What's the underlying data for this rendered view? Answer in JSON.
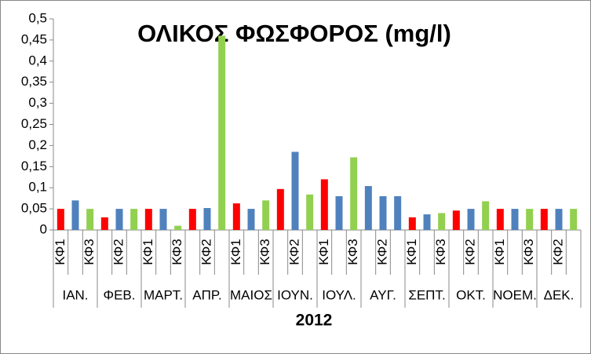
{
  "chart_data": {
    "type": "bar",
    "title": "ΟΛΙΚΟΣ ΦΩΣΦΟΡΟΣ (mg/l)",
    "x_label": "2012",
    "categories": [
      "ΚΦ1",
      null,
      "ΚΦ3",
      null,
      "ΚΦ2",
      null,
      "ΚΦ1",
      null,
      "ΚΦ3",
      null,
      "ΚΦ2",
      null,
      "ΚΦ1",
      null,
      "ΚΦ3",
      null,
      "ΚΦ2",
      null,
      "ΚΦ1",
      null,
      "ΚΦ3",
      null,
      "ΚΦ2",
      null,
      "ΚΦ1",
      null,
      "ΚΦ3",
      null,
      "ΚΦ2",
      null,
      "ΚΦ1",
      null,
      "ΚΦ3",
      null,
      "ΚΦ2",
      null
    ],
    "groups": [
      "ΙΑΝ.",
      "ΦΕΒ.",
      "ΜΑΡΤ.",
      "ΑΠΡ.",
      "ΜΑΙΟΣ",
      "ΙΟΥΝ.",
      "ΙΟΥΛ.",
      "ΑΥΓ.",
      "ΣΕΠΤ.",
      "ΟΚΤ.",
      "ΝΟΕΜ.",
      "ΔΕΚ."
    ],
    "values": [
      0.05,
      0.07,
      0.05,
      0.03,
      0.05,
      0.05,
      0.05,
      0.05,
      0.01,
      0.05,
      0.052,
      0.46,
      0.063,
      0.05,
      0.07,
      0.097,
      0.185,
      0.084,
      0.12,
      0.08,
      0.172,
      0.104,
      0.08,
      0.08,
      0.03,
      0.037,
      0.04,
      0.046,
      0.05,
      0.068,
      0.05,
      0.05,
      0.05,
      0.05,
      0.05,
      0.05
    ],
    "colors": [
      "#ff0000",
      "#4f81bd",
      "#92d050",
      "#ff0000",
      "#4f81bd",
      "#92d050",
      "#ff0000",
      "#4f81bd",
      "#92d050",
      "#ff0000",
      "#4f81bd",
      "#92d050",
      "#ff0000",
      "#4f81bd",
      "#92d050",
      "#ff0000",
      "#4f81bd",
      "#92d050",
      "#ff0000",
      "#4f81bd",
      "#92d050",
      "#4f81bd",
      "#4f81bd",
      "#4f81bd",
      "#ff0000",
      "#4f81bd",
      "#92d050",
      "#ff0000",
      "#4f81bd",
      "#92d050",
      "#ff0000",
      "#4f81bd",
      "#92d050",
      "#ff0000",
      "#4f81bd",
      "#92d050"
    ],
    "ylim": [
      0,
      0.5
    ],
    "yticks": [
      0,
      {
        "value": 0.05,
        "label": "0,05"
      },
      {
        "value": 0.1,
        "label": "0,1"
      },
      {
        "value": 0.15,
        "label": "0,15"
      },
      {
        "value": 0.2,
        "label": "0,2"
      },
      {
        "value": 0.25,
        "label": "0,25"
      },
      {
        "value": 0.3,
        "label": "0,3"
      },
      {
        "value": 0.35,
        "label": "0,35"
      },
      {
        "value": 0.4,
        "label": "0,4"
      },
      {
        "value": 0.45,
        "label": "0,45"
      },
      {
        "value": 0.5,
        "label": "0,5"
      }
    ]
  }
}
